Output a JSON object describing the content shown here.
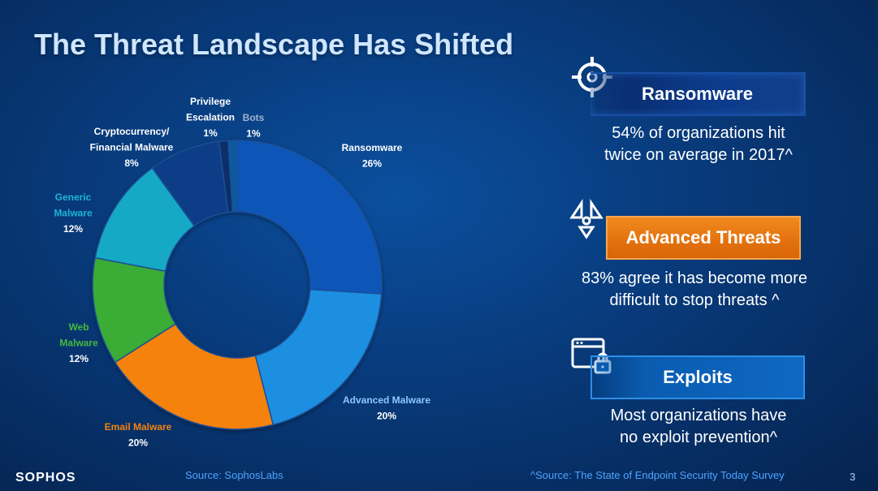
{
  "slide": {
    "title": "The Threat Landscape Has Shifted",
    "logo": "SOPHOS",
    "chart_source": "Source: SophosLabs",
    "survey_source": "^Source: The State of Endpoint Security Today Survey",
    "page_number": "3"
  },
  "chart_data": {
    "type": "pie",
    "title": "",
    "style": "donut",
    "categories": [
      "Ransomware",
      "Advanced Malware",
      "Email Malware",
      "Web Malware",
      "Generic Malware",
      "Cryptocurrency/ Financial Malware",
      "Privilege Escalation",
      "Bots"
    ],
    "values": [
      26,
      20,
      20,
      12,
      12,
      8,
      1,
      1
    ],
    "value_labels": [
      "26%",
      "20%",
      "20%",
      "12%",
      "12%",
      "8%",
      "1%",
      "1%"
    ],
    "label_lines": [
      [
        "Ransomware"
      ],
      [
        "Advanced Malware"
      ],
      [
        "Email Malware"
      ],
      [
        "Web",
        "Malware"
      ],
      [
        "Generic",
        "Malware"
      ],
      [
        "Cryptocurrency/",
        "Financial Malware"
      ],
      [
        "Privilege",
        "Escalation"
      ],
      [
        "Bots"
      ]
    ],
    "colors": [
      "#0a57b8",
      "#1a8fe0",
      "#f5820f",
      "#3aac34",
      "#12a9c6",
      "#0b3d86",
      "#0a2f66",
      "#0d5aa0"
    ],
    "label_colors": [
      "#ffffff",
      "#8ec8ff",
      "#f5820f",
      "#47b83f",
      "#1fb4d8",
      "#ffffff",
      "#ffffff",
      "#9fb4cc"
    ]
  },
  "cards": [
    {
      "title": "Ransomware",
      "icon": "crosshair-icon",
      "lines": [
        "54% of organizations hit",
        "twice on average in 2017^"
      ]
    },
    {
      "title": "Advanced Threats",
      "icon": "radiation-icon",
      "lines": [
        "83% agree it has become more",
        "difficult to stop threats ^"
      ]
    },
    {
      "title": "Exploits",
      "icon": "browser-lock-icon",
      "lines": [
        "Most organizations have",
        "no exploit prevention^"
      ]
    }
  ]
}
